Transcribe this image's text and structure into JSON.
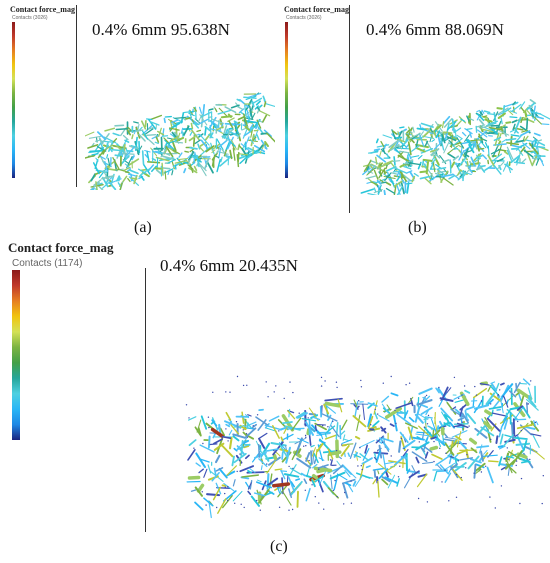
{
  "legend": {
    "title": "Contact force_mag",
    "sub_small": "Contacts (3026)",
    "sub_large": "Contacts (1174)",
    "colors": [
      "#8b1a1a",
      "#c0392b",
      "#e67e22",
      "#f1c40f",
      "#d4e157",
      "#7cb342",
      "#43a047",
      "#26a69a",
      "#4dd0e1",
      "#29b6f6",
      "#1e88e5",
      "#1a237e"
    ]
  },
  "panels": {
    "a": {
      "title": "0.4% 6mm 95.638N",
      "caption": "(a)"
    },
    "b": {
      "title": "0.4% 6mm 88.069N",
      "caption": "(b)"
    },
    "c": {
      "title": "0.4% 6mm 20.435N",
      "caption": "(c)"
    }
  }
}
